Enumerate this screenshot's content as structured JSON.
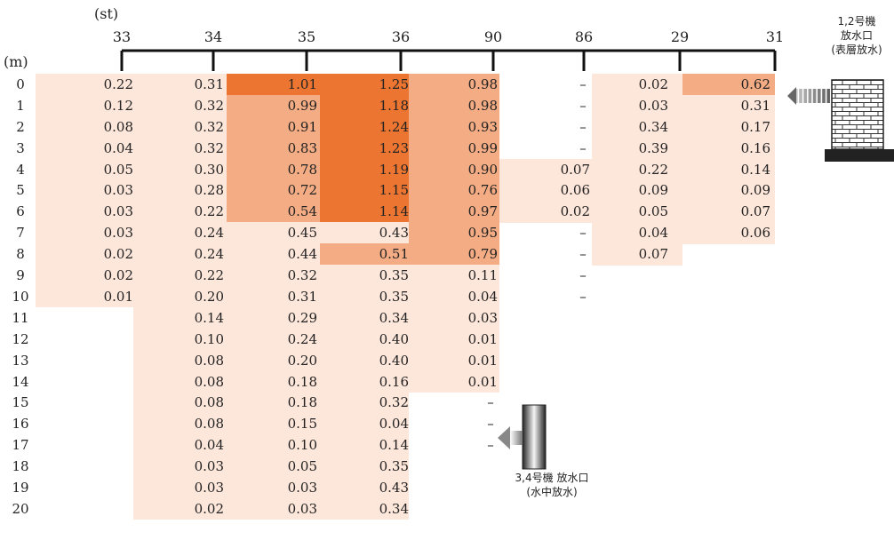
{
  "chart_data": {
    "type": "heatmap",
    "x_axis_label": "(st)",
    "y_axis_label": "(m)",
    "stations": [
      "33",
      "34",
      "35",
      "36",
      "90",
      "86",
      "29",
      "31"
    ],
    "depths": [
      "0",
      "1",
      "2",
      "3",
      "4",
      "5",
      "6",
      "7",
      "8",
      "9",
      "10",
      "11",
      "12",
      "13",
      "14",
      "15",
      "16",
      "17",
      "18",
      "19",
      "20"
    ],
    "values": {
      "33": [
        "0.22",
        "0.12",
        "0.08",
        "0.04",
        "0.05",
        "0.03",
        "0.03",
        "0.03",
        "0.02",
        "0.02",
        "0.01"
      ],
      "34": [
        "0.31",
        "0.32",
        "0.32",
        "0.32",
        "0.30",
        "0.28",
        "0.22",
        "0.24",
        "0.24",
        "0.22",
        "0.20",
        "0.14",
        "0.10",
        "0.08",
        "0.08",
        "0.08",
        "0.08",
        "0.04",
        "0.03",
        "0.03",
        "0.02"
      ],
      "35": [
        "1.01",
        "0.99",
        "0.91",
        "0.83",
        "0.78",
        "0.72",
        "0.54",
        "0.45",
        "0.44",
        "0.32",
        "0.31",
        "0.29",
        "0.24",
        "0.20",
        "0.18",
        "0.18",
        "0.15",
        "0.10",
        "0.05",
        "0.03",
        "0.03"
      ],
      "36": [
        "1.25",
        "1.18",
        "1.24",
        "1.23",
        "1.19",
        "1.15",
        "1.14",
        "0.43",
        "0.51",
        "0.35",
        "0.35",
        "0.34",
        "0.40",
        "0.40",
        "0.16",
        "0.32",
        "0.04",
        "0.14",
        "0.35",
        "0.43",
        "0.34"
      ],
      "90": [
        "0.98",
        "0.98",
        "0.93",
        "0.99",
        "0.90",
        "0.76",
        "0.97",
        "0.95",
        "0.79",
        "0.11",
        "0.04",
        "0.03",
        "0.01",
        "0.01",
        "0.01",
        "–",
        "–",
        "–"
      ],
      "86": [
        "–",
        "–",
        "–",
        "–",
        "0.07",
        "0.06",
        "0.02",
        "–",
        "–",
        "–",
        "–"
      ],
      "29": [
        "0.02",
        "0.03",
        "0.34",
        "0.39",
        "0.22",
        "0.09",
        "0.05",
        "0.04",
        "0.07"
      ],
      "31": [
        "0.62",
        "0.31",
        "0.17",
        "0.16",
        "0.14",
        "0.09",
        "0.07",
        "0.06"
      ]
    },
    "color_scale": {
      "low": "#fde6da",
      "mid": "#f3ac84",
      "high": "#ec7631"
    },
    "annotations": {
      "outfall_12": [
        "1,2号機",
        "放水口",
        "(表層放水)"
      ],
      "outfall_34": [
        "3,4号機 放水口",
        "(水中放水)"
      ]
    }
  }
}
